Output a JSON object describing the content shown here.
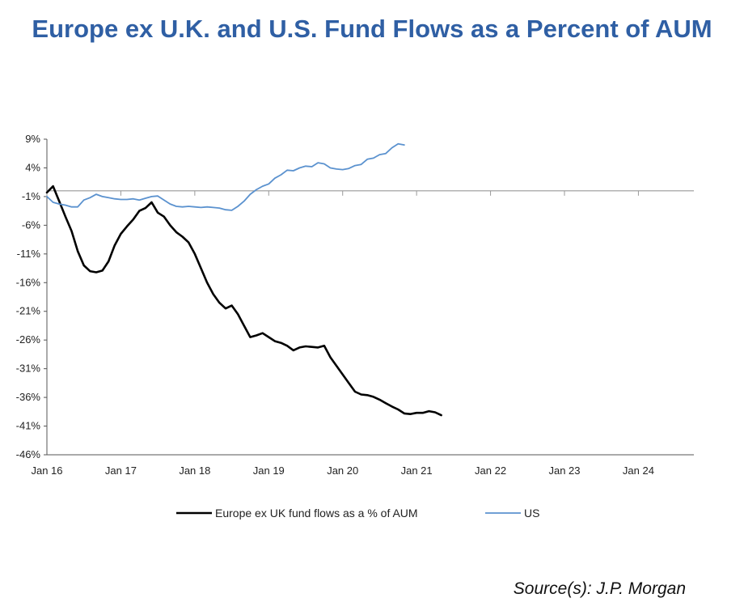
{
  "chart_data": {
    "type": "line",
    "title": "Europe ex U.K. and U.S. Fund Flows as a Percent of AUM",
    "xlabel": "",
    "ylabel": "",
    "x_tick_labels": [
      "Jan 16",
      "Jan 17",
      "Jan 18",
      "Jan 19",
      "Jan 20",
      "Jan 21",
      "Jan 22",
      "Jan 23",
      "Jan 24"
    ],
    "y_tick_labels": [
      "9%",
      "4%",
      "-1%",
      "-6%",
      "-11%",
      "-16%",
      "-21%",
      "-26%",
      "-31%",
      "-36%",
      "-41%",
      "-46%"
    ],
    "ylim": [
      -46,
      9
    ],
    "xlim": [
      "2016-01",
      "2024-10"
    ],
    "grid": false,
    "legend_position": "bottom",
    "series": [
      {
        "name": "Europe ex UK fund flows as a % of AUM",
        "color": "#000000",
        "points": [
          [
            "2016-01",
            -0.3
          ],
          [
            "2016-02",
            0.8
          ],
          [
            "2016-03",
            -1.8
          ],
          [
            "2016-04",
            -4.5
          ],
          [
            "2016-05",
            -7.0
          ],
          [
            "2016-06",
            -10.5
          ],
          [
            "2016-07",
            -13.0
          ],
          [
            "2016-08",
            -14.0
          ],
          [
            "2016-09",
            -14.2
          ],
          [
            "2016-10",
            -13.9
          ],
          [
            "2016-11",
            -12.3
          ],
          [
            "2016-12",
            -9.5
          ],
          [
            "2017-01",
            -7.5
          ],
          [
            "2017-02",
            -6.2
          ],
          [
            "2017-03",
            -5.0
          ],
          [
            "2017-04",
            -3.5
          ],
          [
            "2017-05",
            -3.0
          ],
          [
            "2017-06",
            -2.0
          ],
          [
            "2017-07",
            -3.8
          ],
          [
            "2017-08",
            -4.5
          ],
          [
            "2017-09",
            -6.0
          ],
          [
            "2017-10",
            -7.2
          ],
          [
            "2017-11",
            -8.0
          ],
          [
            "2017-12",
            -9.0
          ],
          [
            "2018-01",
            -11.0
          ],
          [
            "2018-02",
            -13.5
          ],
          [
            "2018-03",
            -16.0
          ],
          [
            "2018-04",
            -18.0
          ],
          [
            "2018-05",
            -19.5
          ],
          [
            "2018-06",
            -20.5
          ],
          [
            "2018-07",
            -20.0
          ],
          [
            "2018-08",
            -21.5
          ],
          [
            "2018-09",
            -23.5
          ],
          [
            "2018-10",
            -25.5
          ],
          [
            "2018-11",
            -25.2
          ],
          [
            "2018-12",
            -24.8
          ],
          [
            "2019-01",
            -25.5
          ],
          [
            "2019-02",
            -26.2
          ],
          [
            "2019-03",
            -26.5
          ],
          [
            "2019-04",
            -27.0
          ],
          [
            "2019-05",
            -27.8
          ],
          [
            "2019-06",
            -27.3
          ],
          [
            "2019-07",
            -27.1
          ],
          [
            "2019-08",
            -27.2
          ],
          [
            "2019-09",
            -27.3
          ],
          [
            "2019-10",
            -27.0
          ],
          [
            "2019-11",
            -29.0
          ],
          [
            "2019-12",
            -30.5
          ],
          [
            "2020-01",
            -32.0
          ],
          [
            "2020-02",
            -33.5
          ],
          [
            "2020-03",
            -35.0
          ],
          [
            "2020-04",
            -35.5
          ],
          [
            "2020-05",
            -35.6
          ],
          [
            "2020-06",
            -35.9
          ],
          [
            "2020-07",
            -36.4
          ],
          [
            "2020-08",
            -37.0
          ],
          [
            "2020-09",
            -37.6
          ],
          [
            "2020-10",
            -38.1
          ],
          [
            "2020-11",
            -38.8
          ],
          [
            "2020-12",
            -38.9
          ],
          [
            "2021-01",
            -38.7
          ],
          [
            "2021-02",
            -38.7
          ],
          [
            "2021-03",
            -38.4
          ],
          [
            "2021-04",
            -38.6
          ],
          [
            "2021-05",
            -39.1
          ]
        ]
      },
      {
        "name": "US",
        "color": "#5b92cf",
        "points": [
          [
            "2016-01",
            -1.0
          ],
          [
            "2016-02",
            -2.0
          ],
          [
            "2016-03",
            -2.3
          ],
          [
            "2016-04",
            -2.5
          ],
          [
            "2016-05",
            -2.8
          ],
          [
            "2016-06",
            -2.8
          ],
          [
            "2016-07",
            -1.6
          ],
          [
            "2016-08",
            -1.2
          ],
          [
            "2016-09",
            -0.6
          ],
          [
            "2016-10",
            -1.0
          ],
          [
            "2016-11",
            -1.2
          ],
          [
            "2016-12",
            -1.4
          ],
          [
            "2017-01",
            -1.5
          ],
          [
            "2017-02",
            -1.5
          ],
          [
            "2017-03",
            -1.4
          ],
          [
            "2017-04",
            -1.6
          ],
          [
            "2017-05",
            -1.3
          ],
          [
            "2017-06",
            -1.0
          ],
          [
            "2017-07",
            -0.9
          ],
          [
            "2017-08",
            -1.6
          ],
          [
            "2017-09",
            -2.3
          ],
          [
            "2017-10",
            -2.7
          ],
          [
            "2017-11",
            -2.8
          ],
          [
            "2017-12",
            -2.7
          ],
          [
            "2018-01",
            -2.8
          ],
          [
            "2018-02",
            -2.9
          ],
          [
            "2018-03",
            -2.8
          ],
          [
            "2018-04",
            -2.9
          ],
          [
            "2018-05",
            -3.0
          ],
          [
            "2018-06",
            -3.3
          ],
          [
            "2018-07",
            -3.4
          ],
          [
            "2018-08",
            -2.7
          ],
          [
            "2018-09",
            -1.8
          ],
          [
            "2018-10",
            -0.6
          ],
          [
            "2018-11",
            0.2
          ],
          [
            "2018-12",
            0.8
          ],
          [
            "2019-01",
            1.2
          ],
          [
            "2019-02",
            2.2
          ],
          [
            "2019-03",
            2.8
          ],
          [
            "2019-04",
            3.6
          ],
          [
            "2019-05",
            3.5
          ],
          [
            "2019-06",
            4.0
          ],
          [
            "2019-07",
            4.3
          ],
          [
            "2019-08",
            4.2
          ],
          [
            "2019-09",
            4.9
          ],
          [
            "2019-10",
            4.7
          ],
          [
            "2019-11",
            4.0
          ],
          [
            "2019-12",
            3.8
          ],
          [
            "2020-01",
            3.7
          ],
          [
            "2020-02",
            3.9
          ],
          [
            "2020-03",
            4.4
          ],
          [
            "2020-04",
            4.6
          ],
          [
            "2020-05",
            5.5
          ],
          [
            "2020-06",
            5.7
          ],
          [
            "2020-07",
            6.3
          ],
          [
            "2020-08",
            6.5
          ],
          [
            "2020-09",
            7.5
          ],
          [
            "2020-10",
            8.2
          ],
          [
            "2020-11",
            8.0
          ]
        ]
      }
    ]
  },
  "source": "Source(s): J.P. Morgan"
}
